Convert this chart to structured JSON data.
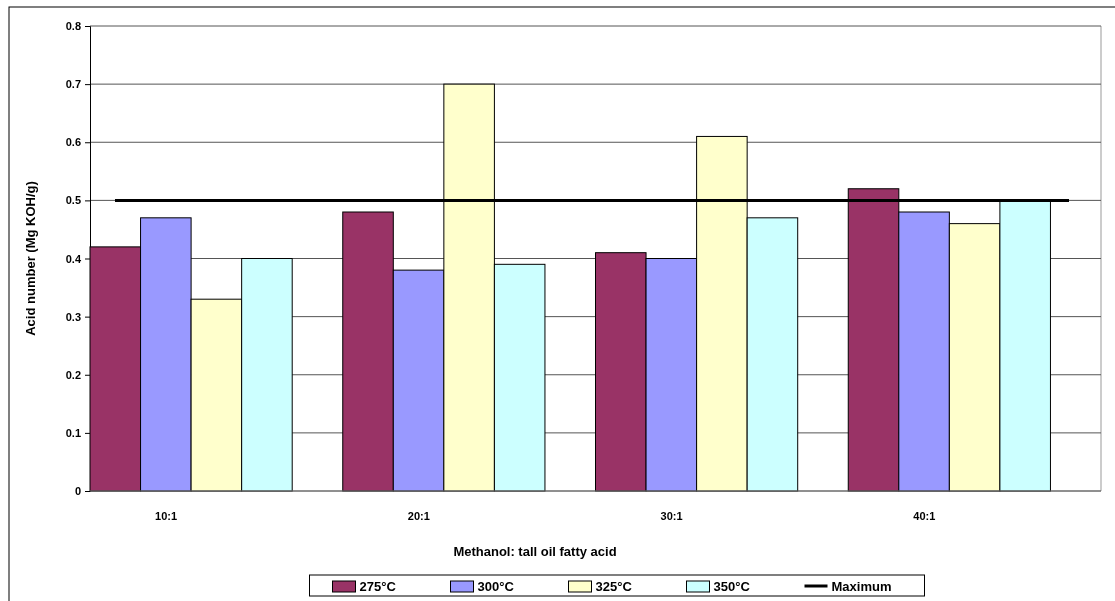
{
  "chart_data": {
    "type": "bar",
    "categories": [
      "10:1",
      "20:1",
      "30:1",
      "40:1"
    ],
    "series": [
      {
        "name": "275°C",
        "color": "#993366",
        "values": [
          0.42,
          0.48,
          0.41,
          0.52
        ]
      },
      {
        "name": "300°C",
        "color": "#9999ff",
        "values": [
          0.47,
          0.38,
          0.4,
          0.48
        ]
      },
      {
        "name": "325°C",
        "color": "#ffffcc",
        "values": [
          0.33,
          0.7,
          0.61,
          0.46
        ]
      },
      {
        "name": "350°C",
        "color": "#ccffff",
        "values": [
          0.4,
          0.39,
          0.47,
          0.5
        ]
      }
    ],
    "xlabel": "Methanol: tall oil fatty acid",
    "ylabel": "Acid number (Mg KOH/g)",
    "ylim": [
      0,
      0.8
    ],
    "yticks": [
      0,
      0.1,
      0.2,
      0.3,
      0.4,
      0.5,
      0.6,
      0.7,
      0.8
    ],
    "grid": "y",
    "legend": "bottom",
    "ref_lines": [
      {
        "axis": "y",
        "value": 0.5,
        "label": "Maximum",
        "color": "#000000"
      }
    ]
  }
}
